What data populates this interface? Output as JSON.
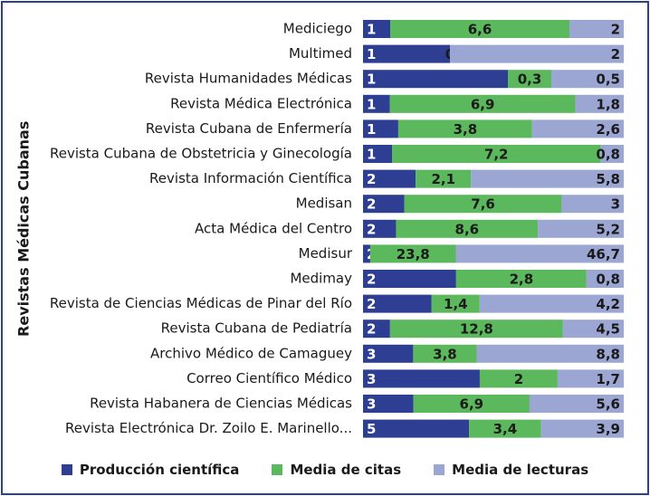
{
  "chart_data": {
    "type": "bar",
    "stacked": true,
    "orientation": "horizontal",
    "ylabel": "Revistas Médicas Cubanas",
    "categories": [
      "Mediciego",
      "Multimed",
      "Revista Humanidades Médicas",
      "Revista Médica Electrónica",
      "Revista Cubana de Enfermería",
      "Revista Cubana de Obstetricia y Ginecología",
      "Revista Información Científica",
      "Medisan",
      "Acta Médica del Centro",
      "Medisur",
      "Medimay",
      "Revista de Ciencias Médicas de Pinar del Río",
      "Revista Cubana de Pediatría",
      "Archivo Médico de Camaguey",
      "Correo Científico Médico",
      "Revista Habanera de Ciencias Médicas",
      "Revista Electrónica Dr. Zoilo E. Marinello..."
    ],
    "series": [
      {
        "name": "Producción científica",
        "color": "#2e3f93",
        "values": [
          1,
          1,
          1,
          1,
          1,
          1,
          2,
          2,
          2,
          2,
          2,
          2,
          2,
          3,
          3,
          3,
          5
        ],
        "labels": [
          "1",
          "1",
          "1",
          "1",
          "1",
          "1",
          "2",
          "2",
          "2",
          "2",
          "2",
          "2",
          "2",
          "3",
          "3",
          "3",
          "5"
        ]
      },
      {
        "name": "Media de citas",
        "color": "#5cb85c",
        "values": [
          6.6,
          0,
          0.3,
          6.9,
          3.8,
          7.2,
          2.1,
          7.6,
          8.6,
          23.8,
          2.8,
          1.4,
          12.8,
          3.8,
          2,
          6.9,
          3.4
        ],
        "labels": [
          "6,6",
          "0",
          "0,3",
          "6,9",
          "3,8",
          "7,2",
          "2,1",
          "7,6",
          "8,6",
          "23,8",
          "2,8",
          "1,4",
          "12,8",
          "3,8",
          "2",
          "6,9",
          "3,4"
        ]
      },
      {
        "name": "Media de lecturas",
        "color": "#9ba6d3",
        "values": [
          2,
          2,
          0.5,
          1.8,
          2.6,
          0.8,
          5.8,
          3,
          5.2,
          46.7,
          0.8,
          4.2,
          4.5,
          8.8,
          1.7,
          5.6,
          3.9
        ],
        "labels": [
          "2",
          "2",
          "0,5",
          "1,8",
          "2,6",
          "0,8",
          "5,8",
          "3",
          "5,2",
          "46,7",
          "0,8",
          "4,2",
          "4,5",
          "8,8",
          "1,7",
          "5,6",
          "3,9"
        ]
      }
    ],
    "xlim": [
      0,
      100
    ],
    "note": "100% stacked bars",
    "legend_position": "bottom"
  }
}
